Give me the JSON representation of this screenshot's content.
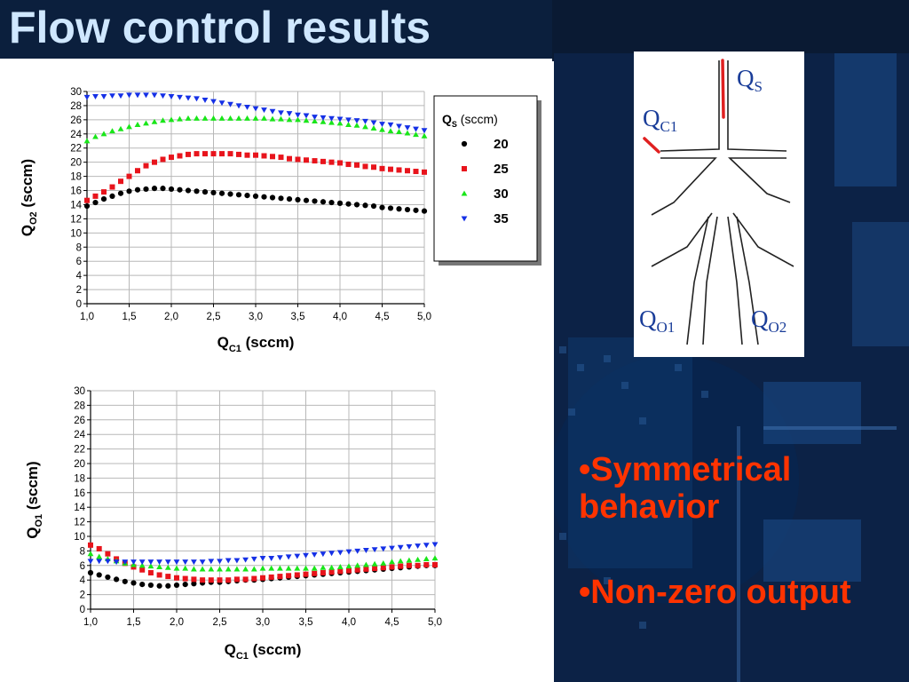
{
  "slide": {
    "title": "Flow control results",
    "bullets": [
      "•Symmetrical behavior",
      "•Non-zero output"
    ]
  },
  "diagram": {
    "labels": {
      "qs": "Q",
      "qs_sub": "S",
      "qc1": "Q",
      "qc1_sub": "C1",
      "qo1": "Q",
      "qo1_sub": "O1",
      "qo2": "Q",
      "qo2_sub": "O2"
    },
    "arrow_color": "#e02020",
    "label_color": "#1a3d99"
  },
  "colors": {
    "title": "#cfe7ff",
    "bullet": "#ff3300",
    "background": "#0a1a33"
  },
  "legend": {
    "title_main": "Q",
    "title_sub": "S",
    "title_unit": " (sccm)",
    "entries": [
      {
        "label": "20",
        "marker": "circle",
        "color": "#000000"
      },
      {
        "label": "25",
        "marker": "square",
        "color": "#e8141c"
      },
      {
        "label": "30",
        "marker": "triangle-up",
        "color": "#19e619"
      },
      {
        "label": "35",
        "marker": "triangle-down",
        "color": "#1530e6"
      }
    ]
  },
  "chart_data": [
    {
      "type": "scatter",
      "xlabel_main": "Q",
      "xlabel_sub": "C1",
      "xlabel_unit": " (sccm)",
      "ylabel_main": "Q",
      "ylabel_sub": "O2",
      "ylabel_unit": " (sccm)",
      "xlim": [
        1.0,
        5.0
      ],
      "ylim": [
        0,
        30
      ],
      "x_ticks": [
        "1,0",
        "1,5",
        "2,0",
        "2,5",
        "3,0",
        "3,5",
        "4,0",
        "4,5",
        "5,0"
      ],
      "y_ticks": [
        "0",
        "2",
        "4",
        "6",
        "8",
        "10",
        "12",
        "14",
        "16",
        "18",
        "20",
        "22",
        "24",
        "26",
        "28",
        "30"
      ],
      "grid": true,
      "legend_position": "top-right",
      "x": [
        1.0,
        1.1,
        1.2,
        1.3,
        1.4,
        1.5,
        1.6,
        1.7,
        1.8,
        1.9,
        2.0,
        2.1,
        2.2,
        2.3,
        2.4,
        2.5,
        2.6,
        2.7,
        2.8,
        2.9,
        3.0,
        3.1,
        3.2,
        3.3,
        3.4,
        3.5,
        3.6,
        3.7,
        3.8,
        3.9,
        4.0,
        4.1,
        4.2,
        4.3,
        4.4,
        4.5,
        4.6,
        4.7,
        4.8,
        4.9,
        5.0
      ],
      "series": [
        {
          "name": "20",
          "values": [
            13.8,
            14.3,
            14.8,
            15.2,
            15.6,
            15.9,
            16.1,
            16.2,
            16.3,
            16.3,
            16.2,
            16.1,
            16.0,
            15.9,
            15.8,
            15.7,
            15.6,
            15.5,
            15.4,
            15.3,
            15.2,
            15.1,
            15.0,
            14.9,
            14.8,
            14.7,
            14.6,
            14.5,
            14.4,
            14.3,
            14.2,
            14.1,
            14.0,
            13.9,
            13.8,
            13.6,
            13.5,
            13.4,
            13.3,
            13.2,
            13.1
          ]
        },
        {
          "name": "25",
          "values": [
            14.6,
            15.2,
            15.8,
            16.5,
            17.3,
            18.0,
            18.8,
            19.5,
            20.0,
            20.4,
            20.7,
            20.9,
            21.1,
            21.2,
            21.2,
            21.2,
            21.2,
            21.2,
            21.1,
            21.0,
            21.0,
            20.9,
            20.8,
            20.7,
            20.5,
            20.4,
            20.3,
            20.2,
            20.1,
            20.0,
            19.9,
            19.7,
            19.6,
            19.4,
            19.3,
            19.1,
            19.0,
            18.9,
            18.8,
            18.7,
            18.6
          ]
        },
        {
          "name": "30",
          "values": [
            23.0,
            23.6,
            24.0,
            24.4,
            24.7,
            25.0,
            25.3,
            25.5,
            25.7,
            25.9,
            26.0,
            26.1,
            26.2,
            26.2,
            26.2,
            26.2,
            26.2,
            26.2,
            26.2,
            26.2,
            26.2,
            26.2,
            26.1,
            26.1,
            26.0,
            26.0,
            25.9,
            25.8,
            25.7,
            25.6,
            25.5,
            25.3,
            25.2,
            25.0,
            24.8,
            24.6,
            24.4,
            24.3,
            24.1,
            23.9,
            23.7
          ]
        },
        {
          "name": "35",
          "values": [
            29.2,
            29.3,
            29.3,
            29.4,
            29.4,
            29.5,
            29.5,
            29.5,
            29.5,
            29.4,
            29.3,
            29.2,
            29.1,
            29.0,
            28.8,
            28.6,
            28.4,
            28.2,
            28.0,
            27.8,
            27.6,
            27.4,
            27.2,
            27.0,
            26.9,
            26.7,
            26.6,
            26.4,
            26.3,
            26.2,
            26.1,
            26.0,
            25.9,
            25.8,
            25.6,
            25.4,
            25.3,
            25.1,
            24.9,
            24.7,
            24.5
          ]
        }
      ]
    },
    {
      "type": "scatter",
      "xlabel_main": "Q",
      "xlabel_sub": "C1",
      "xlabel_unit": " (sccm)",
      "ylabel_main": "Q",
      "ylabel_sub": "O1",
      "ylabel_unit": " (sccm)",
      "xlim": [
        1.0,
        5.0
      ],
      "ylim": [
        0,
        30
      ],
      "x_ticks": [
        "1,0",
        "1,5",
        "2,0",
        "2,5",
        "3,0",
        "3,5",
        "4,0",
        "4,5",
        "5,0"
      ],
      "y_ticks": [
        "0",
        "2",
        "4",
        "6",
        "8",
        "10",
        "12",
        "14",
        "16",
        "18",
        "20",
        "22",
        "24",
        "26",
        "28",
        "30"
      ],
      "grid": true,
      "x": [
        1.0,
        1.1,
        1.2,
        1.3,
        1.4,
        1.5,
        1.6,
        1.7,
        1.8,
        1.9,
        2.0,
        2.1,
        2.2,
        2.3,
        2.4,
        2.5,
        2.6,
        2.7,
        2.8,
        2.9,
        3.0,
        3.1,
        3.2,
        3.3,
        3.4,
        3.5,
        3.6,
        3.7,
        3.8,
        3.9,
        4.0,
        4.1,
        4.2,
        4.3,
        4.4,
        4.5,
        4.6,
        4.7,
        4.8,
        4.9,
        5.0
      ],
      "series": [
        {
          "name": "20",
          "values": [
            5.0,
            4.7,
            4.4,
            4.1,
            3.8,
            3.6,
            3.4,
            3.3,
            3.2,
            3.2,
            3.3,
            3.4,
            3.5,
            3.6,
            3.7,
            3.7,
            3.8,
            3.9,
            4.0,
            4.0,
            4.1,
            4.2,
            4.3,
            4.4,
            4.5,
            4.6,
            4.7,
            4.8,
            4.9,
            5.0,
            5.1,
            5.2,
            5.3,
            5.4,
            5.5,
            5.6,
            5.7,
            5.8,
            5.9,
            6.0,
            6.0
          ]
        },
        {
          "name": "25",
          "values": [
            8.8,
            8.3,
            7.6,
            6.9,
            6.3,
            5.8,
            5.4,
            5.0,
            4.7,
            4.5,
            4.3,
            4.2,
            4.1,
            4.0,
            4.0,
            4.0,
            4.0,
            4.1,
            4.1,
            4.2,
            4.3,
            4.4,
            4.5,
            4.6,
            4.7,
            4.8,
            4.9,
            5.0,
            5.1,
            5.2,
            5.3,
            5.4,
            5.5,
            5.6,
            5.7,
            5.8,
            5.9,
            6.0,
            6.0,
            6.1,
            6.1
          ]
        },
        {
          "name": "30",
          "values": [
            7.6,
            7.2,
            6.9,
            6.6,
            6.3,
            6.1,
            6.0,
            5.9,
            5.8,
            5.7,
            5.6,
            5.6,
            5.5,
            5.5,
            5.5,
            5.5,
            5.5,
            5.5,
            5.5,
            5.5,
            5.6,
            5.6,
            5.6,
            5.6,
            5.6,
            5.6,
            5.6,
            5.7,
            5.7,
            5.8,
            5.9,
            6.0,
            6.1,
            6.2,
            6.3,
            6.5,
            6.6,
            6.7,
            6.8,
            6.9,
            7.0
          ]
        },
        {
          "name": "35",
          "values": [
            6.6,
            6.6,
            6.6,
            6.5,
            6.5,
            6.5,
            6.5,
            6.5,
            6.5,
            6.5,
            6.5,
            6.5,
            6.5,
            6.5,
            6.6,
            6.6,
            6.7,
            6.7,
            6.8,
            6.9,
            7.0,
            7.0,
            7.1,
            7.2,
            7.3,
            7.4,
            7.5,
            7.6,
            7.7,
            7.8,
            7.9,
            8.0,
            8.1,
            8.2,
            8.3,
            8.4,
            8.5,
            8.6,
            8.7,
            8.8,
            8.9
          ]
        }
      ]
    }
  ]
}
